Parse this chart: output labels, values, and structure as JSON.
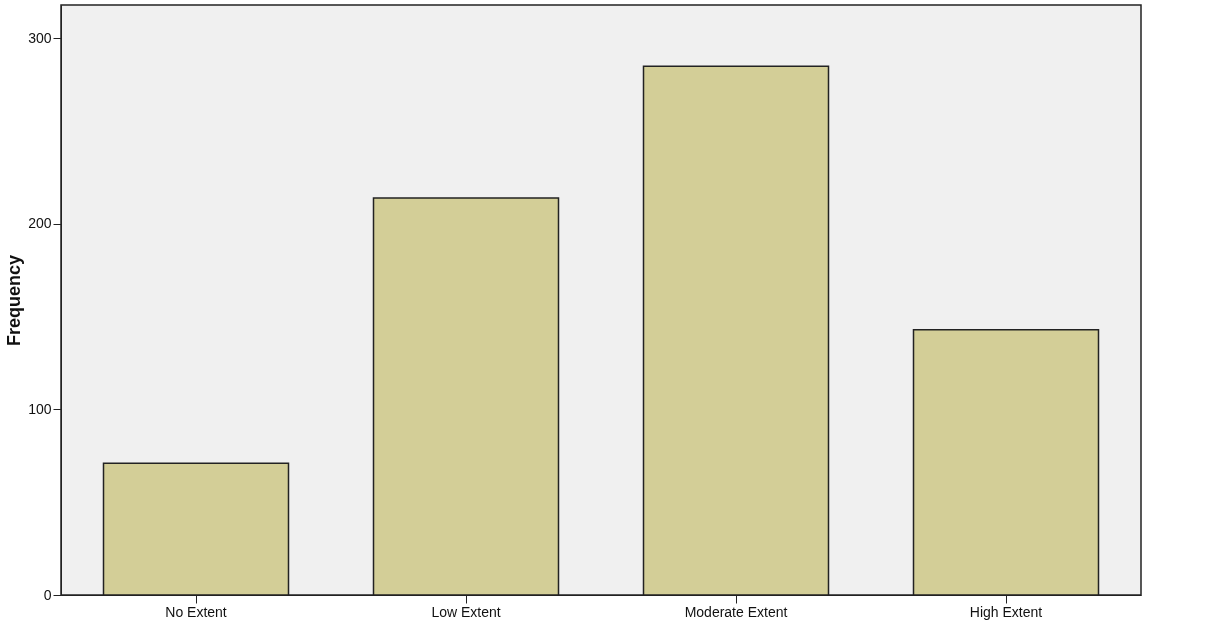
{
  "chart_data": {
    "type": "bar",
    "ylabel": "Frequency",
    "categories": [
      "No Extent",
      "Low Extent",
      "Moderate Extent",
      "High Extent"
    ],
    "values": [
      71,
      214,
      285,
      143
    ],
    "color": "#d3ce97",
    "ylim": [
      0,
      318
    ],
    "yticks": [
      0,
      100,
      200,
      300
    ],
    "grid": false
  }
}
